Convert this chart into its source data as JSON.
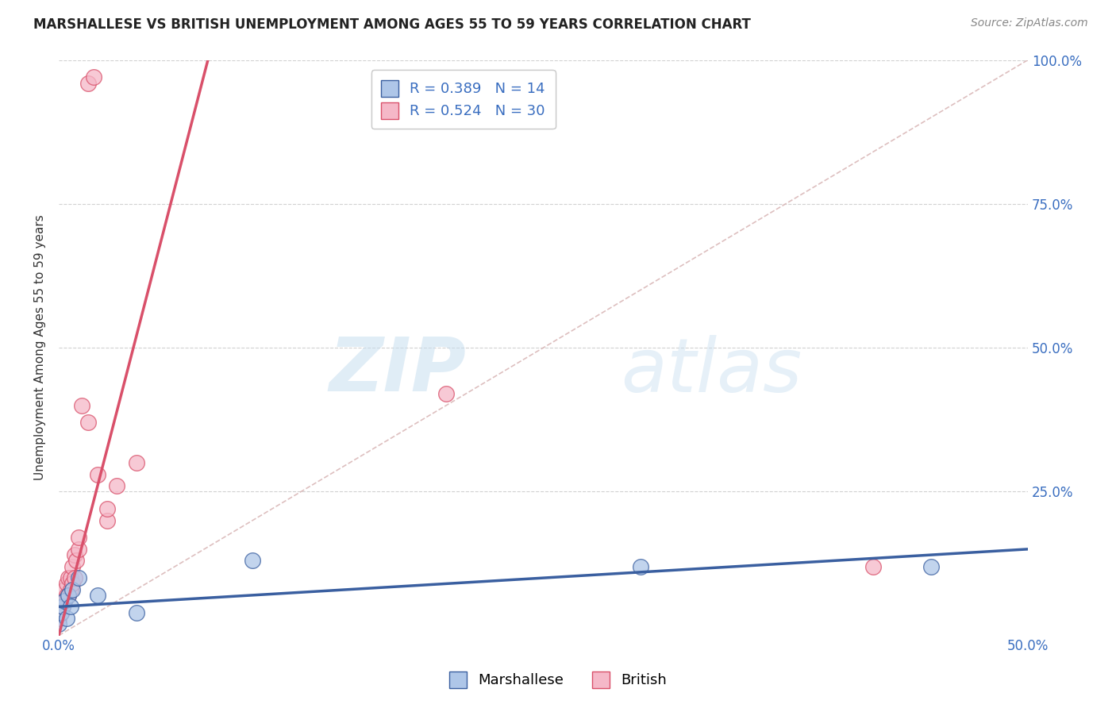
{
  "title": "MARSHALLESE VS BRITISH UNEMPLOYMENT AMONG AGES 55 TO 59 YEARS CORRELATION CHART",
  "source": "Source: ZipAtlas.com",
  "ylabel": "Unemployment Among Ages 55 to 59 years",
  "xlim": [
    0.0,
    0.5
  ],
  "ylim": [
    0.0,
    1.0
  ],
  "marshallese_r": 0.389,
  "marshallese_n": 14,
  "british_r": 0.524,
  "british_n": 30,
  "marshallese_color": "#aec6e8",
  "british_color": "#f5b8c8",
  "marshallese_line_color": "#3a5fa0",
  "british_line_color": "#d9506a",
  "diagonal_color": "#d8b4b4",
  "marshallese_points_x": [
    0.0,
    0.001,
    0.002,
    0.003,
    0.004,
    0.005,
    0.006,
    0.007,
    0.01,
    0.02,
    0.04,
    0.1,
    0.3,
    0.45
  ],
  "marshallese_points_y": [
    0.02,
    0.04,
    0.05,
    0.06,
    0.03,
    0.07,
    0.05,
    0.08,
    0.1,
    0.07,
    0.04,
    0.13,
    0.12,
    0.12
  ],
  "british_points_x": [
    0.0,
    0.001,
    0.002,
    0.002,
    0.003,
    0.003,
    0.004,
    0.004,
    0.005,
    0.005,
    0.006,
    0.006,
    0.007,
    0.007,
    0.008,
    0.008,
    0.009,
    0.01,
    0.01,
    0.012,
    0.015,
    0.015,
    0.018,
    0.02,
    0.025,
    0.025,
    0.03,
    0.04,
    0.2,
    0.42
  ],
  "british_points_y": [
    0.03,
    0.04,
    0.05,
    0.06,
    0.06,
    0.08,
    0.07,
    0.09,
    0.07,
    0.1,
    0.08,
    0.1,
    0.09,
    0.12,
    0.1,
    0.14,
    0.13,
    0.15,
    0.17,
    0.4,
    0.37,
    0.96,
    0.97,
    0.28,
    0.2,
    0.22,
    0.26,
    0.3,
    0.42,
    0.12
  ],
  "watermark_zip": "ZIP",
  "watermark_atlas": "atlas",
  "background_color": "#ffffff",
  "grid_color": "#cccccc",
  "title_fontsize": 12,
  "source_fontsize": 10,
  "axis_label_fontsize": 11,
  "tick_fontsize": 12,
  "legend_fontsize": 13
}
